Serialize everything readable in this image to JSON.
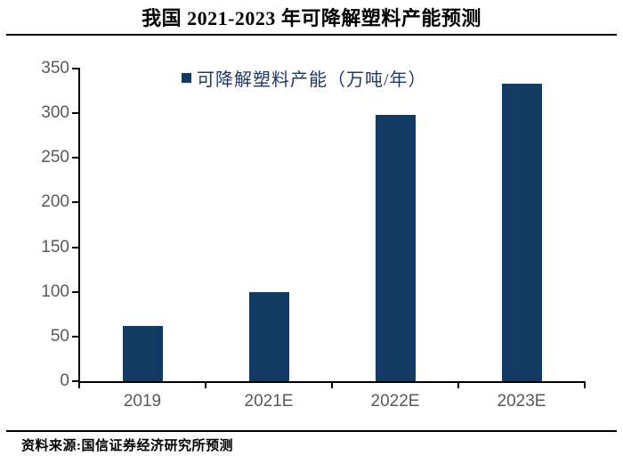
{
  "title": "我国 2021-2023 年可降解塑料产能预测",
  "legend": {
    "label": "可降解塑料产能（万吨/年）",
    "marker": "filled-square"
  },
  "footer": {
    "source": "资料来源:国信证券经济研究所预测"
  },
  "colors": {
    "bar": "#123A63",
    "legend_text": "#1F3864",
    "axis_label": "#595959",
    "axis_line": "#000000"
  },
  "chart_data": {
    "type": "bar",
    "title": "我国 2021-2023 年可降解塑料产能预测",
    "series_name": "可降解塑料产能（万吨/年）",
    "categories": [
      "2019",
      "2021E",
      "2022E",
      "2023E"
    ],
    "values": [
      62,
      100,
      298,
      333
    ],
    "xlabel": "",
    "ylabel": "",
    "ylim": [
      0,
      350
    ],
    "yticks": [
      0,
      50,
      100,
      150,
      200,
      250,
      300,
      350
    ],
    "grid": false,
    "legend_position": "top-center"
  }
}
